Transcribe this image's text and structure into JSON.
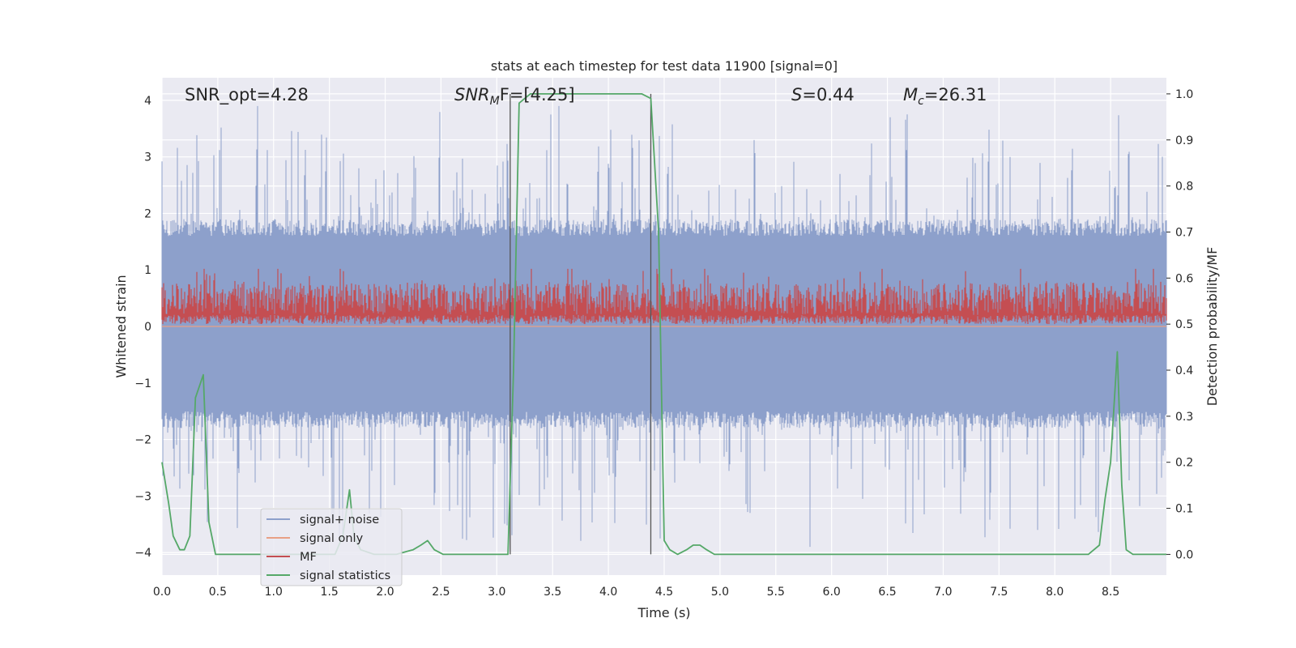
{
  "chart_data": {
    "type": "line",
    "title": "stats at each timestep for test data 11900 [signal=0]",
    "xlabel": "Time (s)",
    "ylabel": "Whitened strain",
    "ylabel_right": "Detection probability/MF",
    "xlim": [
      0.0,
      9.0
    ],
    "ylim": [
      -4.4,
      4.4
    ],
    "ylim_right": [
      -0.045,
      1.035
    ],
    "x_ticks": [
      "0.0",
      "0.5",
      "1.0",
      "1.5",
      "2.0",
      "2.5",
      "3.0",
      "3.5",
      "4.0",
      "4.5",
      "5.0",
      "5.5",
      "6.0",
      "6.5",
      "7.0",
      "7.5",
      "8.0",
      "8.5"
    ],
    "y_ticks": [
      "4",
      "3",
      "2",
      "1",
      "0",
      "−1",
      "−2",
      "−3",
      "−4"
    ],
    "y_ticks_right": [
      "1.0",
      "0.9",
      "0.8",
      "0.7",
      "0.6",
      "0.5",
      "0.4",
      "0.3",
      "0.2",
      "0.1",
      "0.0"
    ],
    "grid": true,
    "legend_position": "lower-left",
    "annotations": {
      "snr_opt": "SNR_opt=4.28",
      "snr_mf_main": "SNR",
      "snr_mf_sub": "M",
      "snr_mf_rest": "F=[4.25]",
      "s_main": "S",
      "s_rest": "=0.44",
      "mc_main": "M",
      "mc_sub": "c",
      "mc_rest": "=26.31"
    },
    "vlines": [
      3.12,
      4.38
    ],
    "series": [
      {
        "name": "signal+ noise",
        "color": "#8da0cb",
        "axis": "left",
        "kind": "noise"
      },
      {
        "name": "signal only",
        "color": "#e8a085",
        "axis": "left",
        "kind": "flat"
      },
      {
        "name": "MF",
        "color": "#c44e52",
        "axis": "right",
        "kind": "mf"
      },
      {
        "name": "signal statistics",
        "color": "#55a868",
        "axis": "right",
        "kind": "line",
        "x": [
          0.0,
          0.06,
          0.1,
          0.16,
          0.2,
          0.25,
          0.3,
          0.37,
          0.42,
          0.48,
          0.6,
          0.8,
          1.0,
          1.2,
          1.4,
          1.55,
          1.62,
          1.68,
          1.72,
          1.78,
          1.9,
          2.1,
          2.25,
          2.32,
          2.38,
          2.44,
          2.52,
          2.7,
          3.0,
          3.1,
          3.15,
          3.2,
          3.25,
          3.3,
          3.5,
          4.0,
          4.2,
          4.3,
          4.38,
          4.45,
          4.5,
          4.55,
          4.62,
          4.7,
          4.76,
          4.82,
          4.88,
          4.95,
          5.1,
          6.0,
          7.0,
          8.0,
          8.3,
          8.4,
          8.45,
          8.5,
          8.56,
          8.6,
          8.64,
          8.7,
          8.8,
          9.0
        ],
        "y": [
          0.2,
          0.11,
          0.04,
          0.01,
          0.01,
          0.04,
          0.34,
          0.39,
          0.07,
          0.0,
          0.0,
          0.0,
          0.0,
          0.0,
          0.0,
          0.0,
          0.04,
          0.14,
          0.04,
          0.01,
          0.0,
          0.0,
          0.01,
          0.02,
          0.03,
          0.01,
          0.0,
          0.0,
          0.0,
          0.0,
          0.4,
          0.98,
          0.99,
          1.0,
          1.0,
          1.0,
          1.0,
          1.0,
          0.99,
          0.7,
          0.03,
          0.01,
          0.0,
          0.01,
          0.02,
          0.02,
          0.01,
          0.0,
          0.0,
          0.0,
          0.0,
          0.0,
          0.0,
          0.02,
          0.12,
          0.2,
          0.44,
          0.15,
          0.01,
          0.0,
          0.0,
          0.0
        ]
      }
    ]
  }
}
